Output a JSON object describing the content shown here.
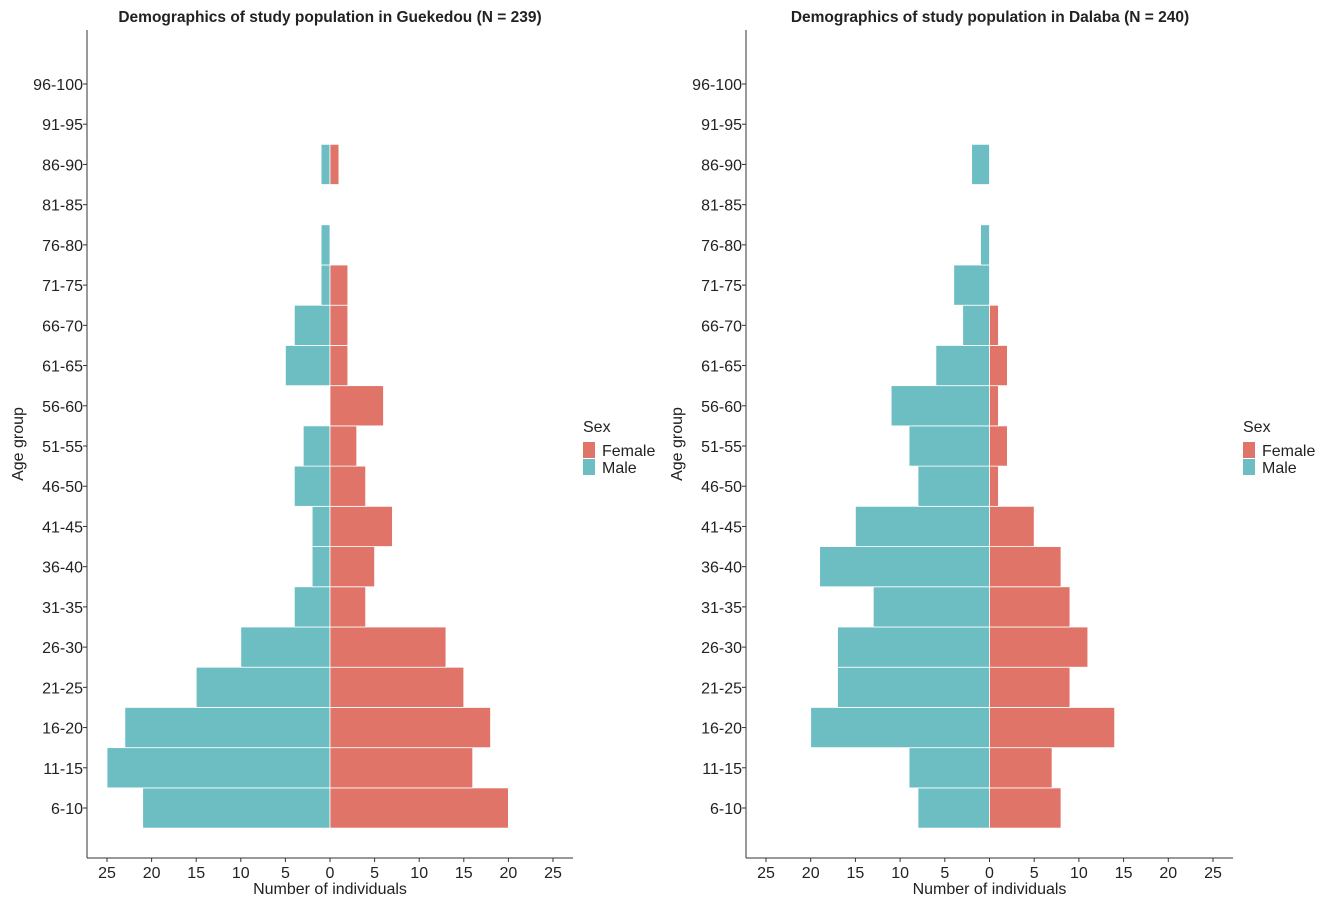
{
  "colors": {
    "female": "#E07468",
    "male": "#6DBEC3",
    "axis": "#333333",
    "text": "#222222"
  },
  "chart_data": [
    {
      "type": "bar",
      "orientation": "horizontal",
      "layout": "population-pyramid",
      "title": "Demographics of study population in Guekedou (N = 239)",
      "xlabel": "Number of individuals",
      "ylabel": "Age group",
      "xlim": [
        -25,
        25
      ],
      "x_ticks": [
        -25,
        -20,
        -15,
        -10,
        -5,
        0,
        5,
        10,
        15,
        20,
        25
      ],
      "x_tick_labels": [
        "25",
        "20",
        "15",
        "10",
        "5",
        "0",
        "5",
        "10",
        "15",
        "20",
        "25"
      ],
      "categories": [
        "6-10",
        "11-15",
        "16-20",
        "21-25",
        "26-30",
        "31-35",
        "36-40",
        "41-45",
        "46-50",
        "51-55",
        "56-60",
        "61-65",
        "66-70",
        "71-75",
        "76-80",
        "81-85",
        "86-90",
        "91-95",
        "96-100"
      ],
      "series": [
        {
          "name": "Female",
          "values": [
            20,
            16,
            18,
            15,
            13,
            4,
            5,
            7,
            4,
            3,
            6,
            2,
            2,
            2,
            0,
            0,
            1,
            0,
            0
          ]
        },
        {
          "name": "Male",
          "values": [
            21,
            25,
            23,
            15,
            10,
            4,
            2,
            2,
            4,
            3,
            0,
            5,
            4,
            1,
            1,
            0,
            1,
            0,
            0
          ]
        }
      ],
      "legend": {
        "title": "Sex",
        "entries": [
          "Female",
          "Male"
        ],
        "position": "right"
      },
      "grid": false
    },
    {
      "type": "bar",
      "orientation": "horizontal",
      "layout": "population-pyramid",
      "title": "Demographics of study population in Dalaba (N = 240)",
      "xlabel": "Number of individuals",
      "ylabel": "Age group",
      "xlim": [
        -25,
        25
      ],
      "x_ticks": [
        -25,
        -20,
        -15,
        -10,
        -5,
        0,
        5,
        10,
        15,
        20,
        25
      ],
      "x_tick_labels": [
        "25",
        "20",
        "15",
        "10",
        "5",
        "0",
        "5",
        "10",
        "15",
        "20",
        "25"
      ],
      "categories": [
        "6-10",
        "11-15",
        "16-20",
        "21-25",
        "26-30",
        "31-35",
        "36-40",
        "41-45",
        "46-50",
        "51-55",
        "56-60",
        "61-65",
        "66-70",
        "71-75",
        "76-80",
        "81-85",
        "86-90",
        "91-95",
        "96-100"
      ],
      "series": [
        {
          "name": "Female",
          "values": [
            8,
            7,
            14,
            9,
            11,
            9,
            8,
            5,
            1,
            2,
            1,
            2,
            1,
            0,
            0,
            0,
            0,
            0,
            0
          ]
        },
        {
          "name": "Male",
          "values": [
            8,
            9,
            20,
            17,
            17,
            13,
            19,
            15,
            8,
            9,
            11,
            6,
            3,
            4,
            1,
            0,
            2,
            0,
            0
          ]
        }
      ],
      "legend": {
        "title": "Sex",
        "entries": [
          "Female",
          "Male"
        ],
        "position": "right"
      },
      "grid": false
    }
  ]
}
